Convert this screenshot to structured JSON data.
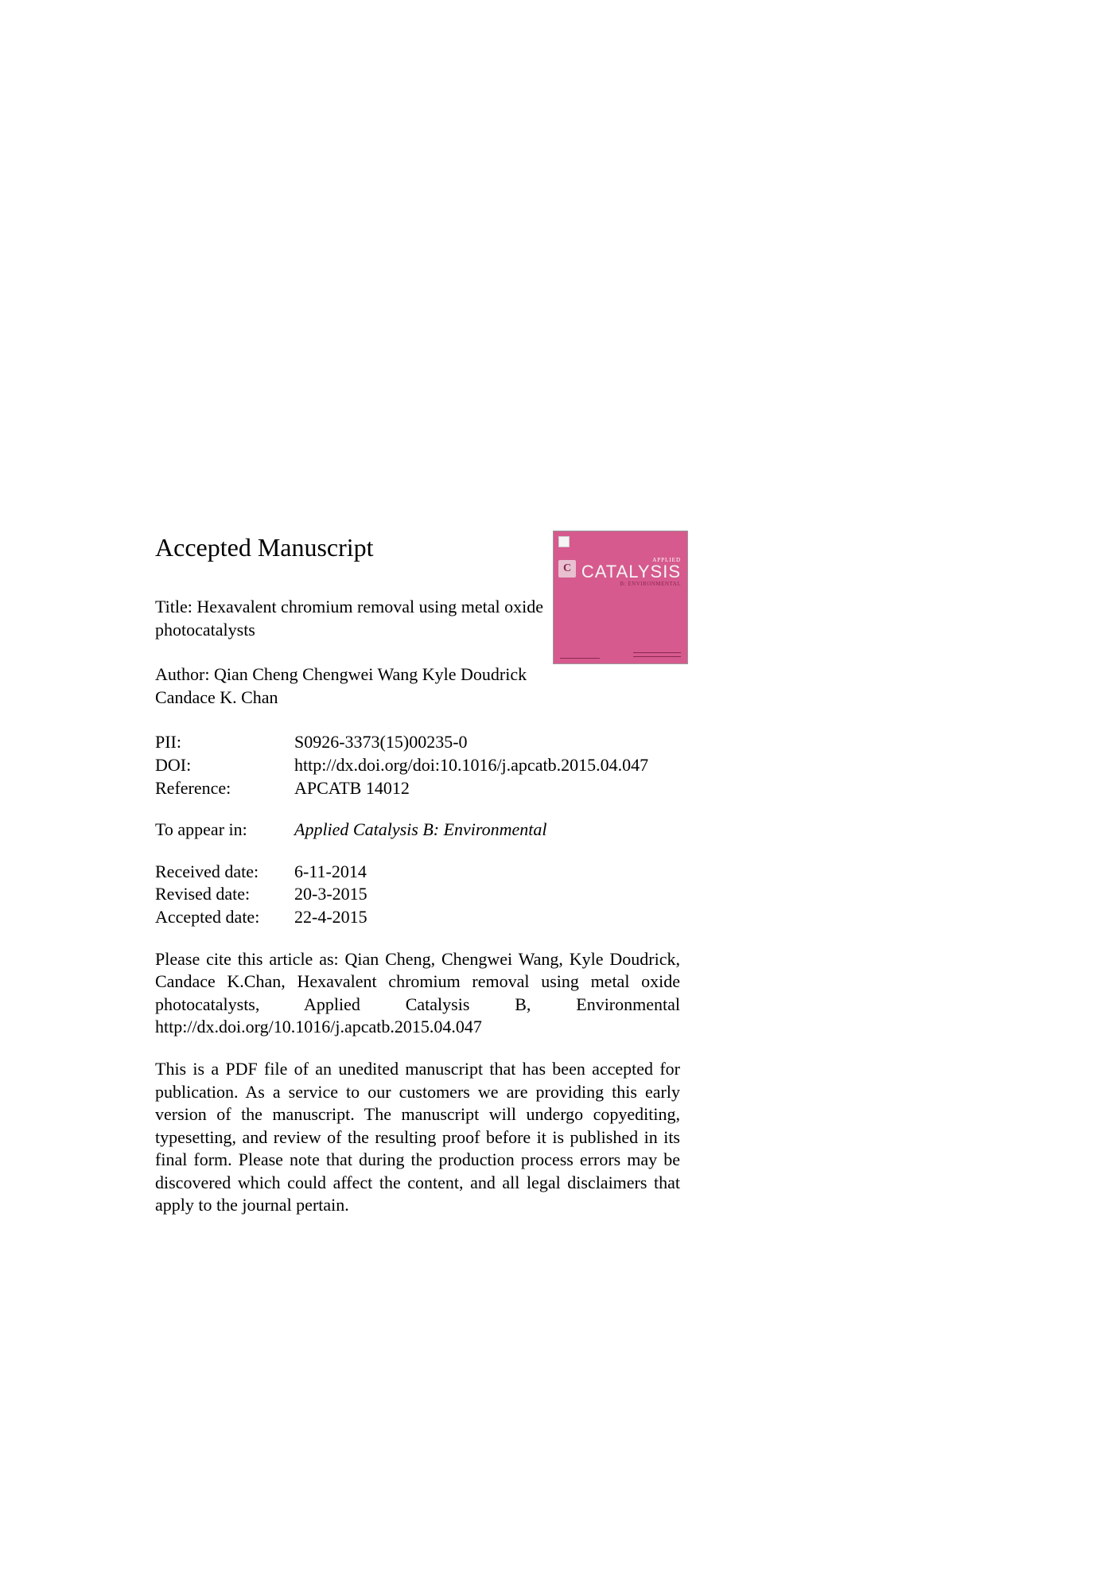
{
  "heading": "Accepted Manuscript",
  "title_label": "Title:",
  "title": "Hexavalent chromium removal using metal oxide photocatalysts",
  "author_label": "Author:",
  "author": "Qian Cheng Chengwei Wang Kyle Doudrick Candace K. Chan",
  "meta": {
    "pii_label": "PII:",
    "pii": "S0926-3373(15)00235-0",
    "doi_label": "DOI:",
    "doi": "http://dx.doi.org/doi:10.1016/j.apcatb.2015.04.047",
    "reference_label": "Reference:",
    "reference": "APCATB 14012",
    "appear_label": "To appear in:",
    "appear": "Applied Catalysis B: Environmental",
    "received_label": "Received date:",
    "received": "6-11-2014",
    "revised_label": "Revised date:",
    "revised": "20-3-2015",
    "accepted_label": "Accepted date:",
    "accepted": "22-4-2015"
  },
  "citation": "Please cite this article as: Qian Cheng, Chengwei Wang, Kyle Doudrick, Candace K.Chan, Hexavalent chromium removal using metal oxide photocatalysts, Applied Catalysis B, Environmental http://dx.doi.org/10.1016/j.apcatb.2015.04.047",
  "disclaimer": "This is a PDF file of an unedited manuscript that has been accepted for publication. As a service to our customers we are providing this early version of the manuscript. The manuscript will undergo copyediting, typesetting, and review of the resulting proof before it is published in its final form. Please note that during the production process errors may be discovered which could affect the content, and all legal disclaimers that apply to the journal pertain.",
  "cover": {
    "applied": "APPLIED",
    "catalysis": "CATALYSIS",
    "sub": "B: ENVIRONMENTAL",
    "icon": "C"
  },
  "colors": {
    "background": "#ffffff",
    "text": "#000000",
    "cover_bg": "#d65a8e",
    "cover_dark": "#8b2850",
    "cover_light": "#e8c0d0"
  },
  "fonts": {
    "body_family": "Times New Roman",
    "body_size": 22,
    "heading_size": 32
  }
}
